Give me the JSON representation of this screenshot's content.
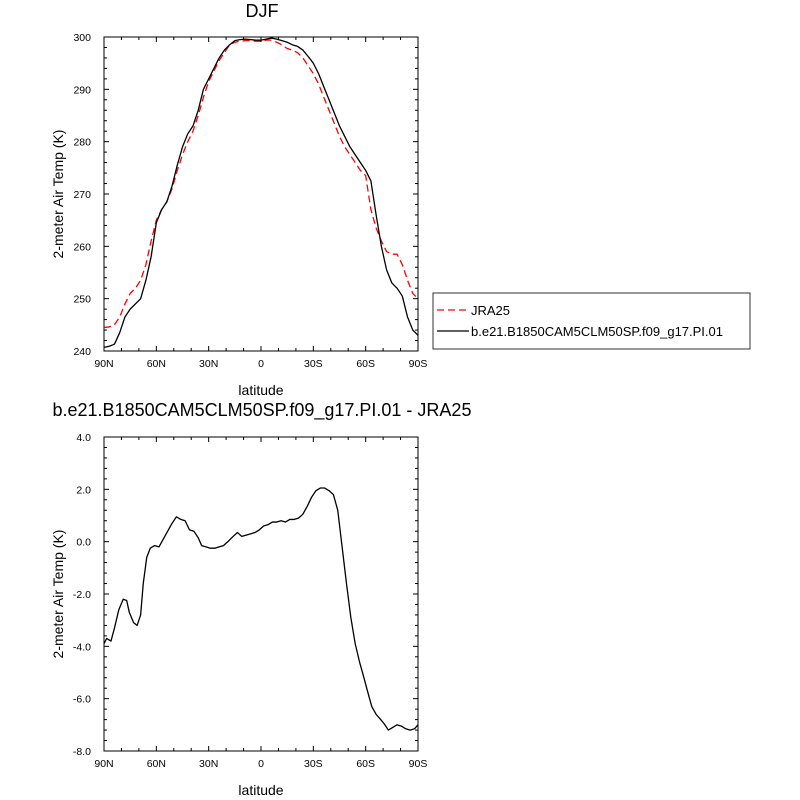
{
  "chart_data": [
    {
      "type": "line",
      "title": "DJF",
      "xlabel": "latitude",
      "ylabel": "2-meter Air Temp (K)",
      "xlim": [
        90,
        -90
      ],
      "ylim": [
        240,
        300
      ],
      "x_ticks": [
        90,
        60,
        30,
        0,
        -30,
        -60,
        -90
      ],
      "x_tick_labels": [
        "90N",
        "60N",
        "30N",
        "0",
        "30S",
        "60S",
        "90S"
      ],
      "y_ticks": [
        240,
        250,
        260,
        270,
        280,
        290,
        300
      ],
      "y_tick_labels": [
        "240",
        "250",
        "260",
        "270",
        "280",
        "290",
        "300"
      ],
      "legend_position": "right",
      "series": [
        {
          "name": "JRA25",
          "color": "#ff0000",
          "dash": "dashed",
          "x": [
            90,
            87,
            84,
            81,
            78,
            75,
            72,
            69,
            66,
            63,
            60,
            57,
            54,
            51,
            48,
            45,
            42,
            39,
            36,
            33,
            30,
            27,
            24,
            21,
            18,
            15,
            12,
            9,
            6,
            3,
            0,
            -3,
            -6,
            -9,
            -12,
            -15,
            -18,
            -21,
            -24,
            -27,
            -30,
            -33,
            -36,
            -39,
            -42,
            -45,
            -48,
            -51,
            -54,
            -57,
            -60,
            -63,
            -66,
            -69,
            -72,
            -75,
            -78,
            -81,
            -84,
            -87,
            -90
          ],
          "values": [
            244.5,
            244.6,
            245.0,
            246.5,
            249.0,
            251.0,
            252.0,
            253.5,
            256.5,
            261.0,
            265.0,
            267.0,
            268.5,
            271.0,
            274.5,
            277.5,
            280.0,
            282.0,
            285.0,
            288.5,
            291.5,
            293.5,
            295.5,
            297.0,
            298.5,
            299.0,
            299.2,
            299.3,
            299.3,
            299.2,
            299.2,
            299.4,
            299.4,
            299.0,
            298.5,
            297.8,
            297.5,
            297.0,
            296.0,
            294.5,
            293.0,
            291.0,
            288.5,
            286.0,
            283.5,
            281.0,
            279.0,
            277.5,
            276.0,
            274.5,
            273.5,
            267.0,
            263.5,
            261.0,
            259.0,
            258.5,
            258.5,
            256.5,
            253.5,
            251.0,
            250.0
          ]
        },
        {
          "name": "b.e21.B1850CAM5CLM50SP.f09_g17.PI.01",
          "color": "#000000",
          "dash": "solid",
          "x": [
            90,
            87,
            84,
            81,
            78,
            75,
            72,
            69,
            66,
            63,
            60,
            57,
            54,
            51,
            48,
            45,
            42,
            39,
            36,
            33,
            30,
            27,
            24,
            21,
            18,
            15,
            12,
            9,
            6,
            3,
            0,
            -3,
            -6,
            -9,
            -12,
            -15,
            -18,
            -21,
            -24,
            -27,
            -30,
            -33,
            -36,
            -39,
            -42,
            -45,
            -48,
            -51,
            -54,
            -57,
            -60,
            -63,
            -66,
            -69,
            -72,
            -75,
            -78,
            -81,
            -84,
            -87,
            -90
          ],
          "values": [
            240.7,
            240.9,
            241.3,
            243.5,
            246.5,
            248.0,
            249.0,
            250.0,
            253.5,
            258.0,
            264.5,
            267.0,
            268.5,
            271.5,
            275.5,
            279.0,
            281.5,
            283.0,
            286.0,
            290.0,
            292.0,
            294.0,
            296.0,
            297.5,
            298.5,
            299.3,
            299.5,
            299.6,
            299.5,
            299.4,
            299.4,
            299.6,
            299.8,
            299.6,
            299.3,
            299.0,
            298.5,
            298.2,
            297.5,
            296.3,
            295.0,
            293.0,
            290.5,
            288.0,
            285.5,
            283.0,
            281.0,
            279.0,
            277.5,
            276.0,
            274.5,
            272.5,
            266.0,
            260.0,
            255.5,
            253.0,
            252.0,
            250.5,
            246.5,
            244.0,
            243.0
          ]
        }
      ]
    },
    {
      "type": "line",
      "title": "b.e21.B1850CAM5CLM50SP.f09_g17.PI.01 - JRA25",
      "xlabel": "latitude",
      "ylabel": "2-meter Air Temp (K)",
      "xlim": [
        90,
        -90
      ],
      "ylim": [
        -8,
        4
      ],
      "x_ticks": [
        90,
        60,
        30,
        0,
        -30,
        -60,
        -90
      ],
      "x_tick_labels": [
        "90N",
        "60N",
        "30N",
        "0",
        "30S",
        "60S",
        "90S"
      ],
      "y_ticks": [
        4,
        2,
        0,
        -2,
        -4,
        -6,
        -8
      ],
      "y_tick_labels": [
        "4.0",
        "2.0",
        "0.0",
        "-2.0",
        "-4.0",
        "-6.0",
        "-8.0"
      ],
      "series": [
        {
          "color": "#000000",
          "dash": "solid",
          "x": [
            90,
            88.5,
            86,
            84,
            81.5,
            79,
            77,
            75.5,
            73,
            71,
            69,
            67.5,
            65.5,
            63.5,
            61,
            58.5,
            56,
            53.5,
            51,
            48.5,
            46,
            43.5,
            41,
            38.5,
            36,
            34,
            31.5,
            29,
            26.5,
            24,
            21.5,
            19,
            16,
            13.5,
            11,
            8.5,
            6,
            3.5,
            1,
            -1.5,
            -4,
            -6.5,
            -9,
            -11.5,
            -14,
            -16.5,
            -19,
            -21.5,
            -24,
            -26.5,
            -29,
            -31.5,
            -34,
            -36.5,
            -39,
            -41.5,
            -44,
            -46.5,
            -49,
            -51.5,
            -54,
            -56.5,
            -59,
            -61,
            -63.5,
            -66,
            -68,
            -70.5,
            -73,
            -75.5,
            -78,
            -80.5,
            -83,
            -85.5,
            -88,
            -90
          ],
          "values": [
            -3.9,
            -3.7,
            -3.8,
            -3.3,
            -2.6,
            -2.2,
            -2.25,
            -2.7,
            -3.1,
            -3.2,
            -2.8,
            -1.6,
            -0.6,
            -0.25,
            -0.15,
            -0.2,
            0.1,
            0.4,
            0.7,
            0.95,
            0.85,
            0.8,
            0.45,
            0.4,
            0.15,
            -0.15,
            -0.2,
            -0.25,
            -0.25,
            -0.2,
            -0.15,
            0.0,
            0.2,
            0.35,
            0.2,
            0.25,
            0.3,
            0.35,
            0.45,
            0.6,
            0.65,
            0.75,
            0.75,
            0.8,
            0.75,
            0.85,
            0.85,
            0.9,
            1.05,
            1.35,
            1.7,
            1.95,
            2.05,
            2.05,
            1.95,
            1.8,
            1.2,
            -0.2,
            -1.6,
            -2.9,
            -3.9,
            -4.6,
            -5.2,
            -5.7,
            -6.3,
            -6.6,
            -6.75,
            -6.95,
            -7.2,
            -7.1,
            -7.0,
            -7.05,
            -7.15,
            -7.2,
            -7.15,
            -7.0
          ]
        }
      ]
    }
  ]
}
